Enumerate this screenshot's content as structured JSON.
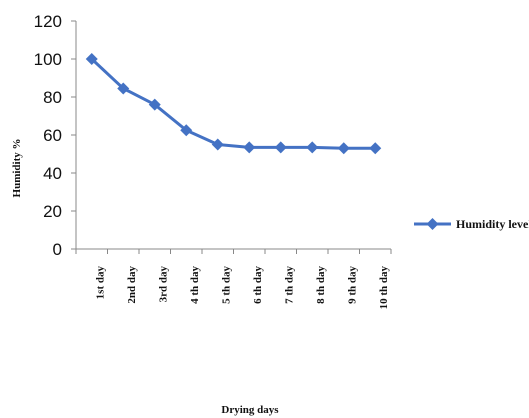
{
  "chart_data": {
    "type": "line",
    "categories": [
      "1st day",
      "2nd day",
      "3rd day",
      "4 th day",
      "5 th day",
      "6 th day",
      "7 th day",
      "8 th day",
      "9 th day",
      "10 th day"
    ],
    "series": [
      {
        "name": "Humidity level",
        "values": [
          100,
          84.5,
          76,
          62.5,
          55,
          53.5,
          53.5,
          53.5,
          53,
          53
        ],
        "color": "#4472c4"
      }
    ],
    "ylim": [
      0,
      120
    ],
    "yticks": [
      "0",
      "20",
      "40",
      "60",
      "80",
      "100",
      "120"
    ],
    "ylabel": "Humidity  %",
    "xlabel": "Drying days",
    "legend_position": "right",
    "grid": false,
    "marker": "diamond"
  }
}
